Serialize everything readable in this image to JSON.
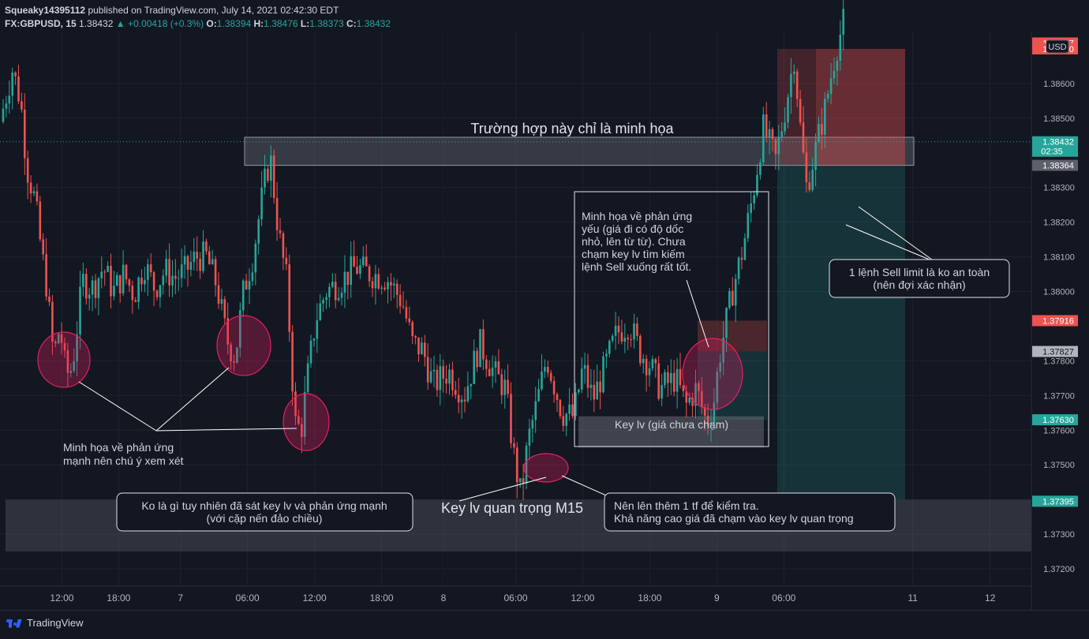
{
  "header": {
    "line1_user": "Squeaky14395112",
    "line1_rest": "published on TradingView.com, July 14, 2021 02:42:30 EDT",
    "symbol": "FX:GBPUSD, 15",
    "last": "1.38432",
    "change": "+0.00418 (+0.3%)",
    "o_label": "O:",
    "o": "1.38394",
    "h_label": "H:",
    "h": "1.38476",
    "l_label": "L:",
    "l": "1.38373",
    "c_label": "C:",
    "c": "1.38432"
  },
  "footer": {
    "brand": "TradingView"
  },
  "colors": {
    "background": "#131722",
    "up": "#26a69a",
    "down": "#ef5350",
    "annotation_circle": "#e91e63",
    "zone": "#787b86"
  },
  "chart_data": {
    "type": "candlestick",
    "currency": "USD",
    "ylim": [
      1.3715,
      1.3875
    ],
    "y_ticks": [
      "1.38600",
      "1.38500",
      "1.38300",
      "1.38200",
      "1.38100",
      "1.38000",
      "1.37800",
      "1.37700",
      "1.37600",
      "1.37500",
      "1.37300",
      "1.37200"
    ],
    "x_ticks": [
      {
        "label": "12:00",
        "t": 0.06
      },
      {
        "label": "18:00",
        "t": 0.115
      },
      {
        "label": "7",
        "t": 0.175
      },
      {
        "label": "06:00",
        "t": 0.24
      },
      {
        "label": "12:00",
        "t": 0.305
      },
      {
        "label": "18:00",
        "t": 0.37
      },
      {
        "label": "8",
        "t": 0.43
      },
      {
        "label": "06:00",
        "t": 0.5
      },
      {
        "label": "12:00",
        "t": 0.565
      },
      {
        "label": "18:00",
        "t": 0.63
      },
      {
        "label": "9",
        "t": 0.695
      },
      {
        "label": "06:00",
        "t": 0.76
      },
      {
        "label": "11",
        "t": 0.885
      },
      {
        "label": "12",
        "t": 0.96
      }
    ],
    "price_labels": [
      {
        "text": "1.38717",
        "price": 1.38717,
        "bg": "#ef5350"
      },
      {
        "text": "1.38700",
        "price": 1.387,
        "bg": "#ef5350"
      },
      {
        "text": "1.38432",
        "sub": "02:35",
        "price": 1.38432,
        "bg": "#26a69a"
      },
      {
        "text": "1.38364",
        "price": 1.38364,
        "bg": "#5d606b"
      },
      {
        "text": "1.37916",
        "price": 1.37916,
        "bg": "#ef5350"
      },
      {
        "text": "1.37827",
        "price": 1.37827,
        "bg": "#b2b5be",
        "fg": "#131722"
      },
      {
        "text": "1.37630",
        "price": 1.3763,
        "bg": "#26a69a"
      },
      {
        "text": "1.37395",
        "price": 1.37395,
        "bg": "#26a69a"
      }
    ],
    "path": [
      [
        0.0,
        1.3849
      ],
      [
        0.012,
        1.3864
      ],
      [
        0.02,
        1.3855
      ],
      [
        0.026,
        1.3836
      ],
      [
        0.034,
        1.3826
      ],
      [
        0.04,
        1.3812
      ],
      [
        0.045,
        1.3802
      ],
      [
        0.052,
        1.3781
      ],
      [
        0.058,
        1.379
      ],
      [
        0.064,
        1.3776
      ],
      [
        0.07,
        1.3778
      ],
      [
        0.08,
        1.3803
      ],
      [
        0.09,
        1.3801
      ],
      [
        0.1,
        1.3807
      ],
      [
        0.11,
        1.38
      ],
      [
        0.12,
        1.3805
      ],
      [
        0.13,
        1.3799
      ],
      [
        0.14,
        1.3808
      ],
      [
        0.15,
        1.3801
      ],
      [
        0.16,
        1.3806
      ],
      [
        0.17,
        1.3804
      ],
      [
        0.18,
        1.3806
      ],
      [
        0.19,
        1.381
      ],
      [
        0.2,
        1.381
      ],
      [
        0.21,
        1.3802
      ],
      [
        0.22,
        1.3786
      ],
      [
        0.228,
        1.3781
      ],
      [
        0.236,
        1.38
      ],
      [
        0.245,
        1.381
      ],
      [
        0.255,
        1.3829
      ],
      [
        0.262,
        1.3839
      ],
      [
        0.27,
        1.3817
      ],
      [
        0.278,
        1.3803
      ],
      [
        0.286,
        1.3762
      ],
      [
        0.292,
        1.376
      ],
      [
        0.298,
        1.3775
      ],
      [
        0.306,
        1.3792
      ],
      [
        0.316,
        1.38
      ],
      [
        0.33,
        1.3803
      ],
      [
        0.345,
        1.3807
      ],
      [
        0.36,
        1.3805
      ],
      [
        0.375,
        1.3804
      ],
      [
        0.39,
        1.3797
      ],
      [
        0.4,
        1.3785
      ],
      [
        0.41,
        1.3783
      ],
      [
        0.42,
        1.3773
      ],
      [
        0.435,
        1.3777
      ],
      [
        0.45,
        1.377
      ],
      [
        0.465,
        1.3785
      ],
      [
        0.48,
        1.3776
      ],
      [
        0.49,
        1.3772
      ],
      [
        0.498,
        1.3753
      ],
      [
        0.505,
        1.3741
      ],
      [
        0.512,
        1.3757
      ],
      [
        0.52,
        1.3767
      ],
      [
        0.53,
        1.3781
      ],
      [
        0.545,
        1.3765
      ],
      [
        0.556,
        1.3764
      ],
      [
        0.565,
        1.3778
      ],
      [
        0.575,
        1.3769
      ],
      [
        0.585,
        1.3777
      ],
      [
        0.598,
        1.3788
      ],
      [
        0.61,
        1.3791
      ],
      [
        0.62,
        1.3783
      ],
      [
        0.63,
        1.3779
      ],
      [
        0.64,
        1.3772
      ],
      [
        0.655,
        1.3775
      ],
      [
        0.665,
        1.3767
      ],
      [
        0.675,
        1.3772
      ],
      [
        0.685,
        1.3762
      ],
      [
        0.692,
        1.3768
      ],
      [
        0.698,
        1.3782
      ],
      [
        0.71,
        1.38
      ],
      [
        0.72,
        1.3812
      ],
      [
        0.73,
        1.3828
      ],
      [
        0.74,
        1.3847
      ],
      [
        0.752,
        1.3838
      ],
      [
        0.762,
        1.3854
      ],
      [
        0.77,
        1.3868
      ],
      [
        0.776,
        1.3847
      ],
      [
        0.782,
        1.383
      ],
      [
        0.79,
        1.384
      ],
      [
        0.8,
        1.3853
      ],
      [
        0.81,
        1.3869
      ],
      [
        0.818,
        1.3878
      ]
    ]
  },
  "annotations": {
    "title_note": "Trường hợp này chỉ là minh họa",
    "weak_reaction": "Minh họa về phản ứng yếu (giá đi có độ dốc nhỏ, lên từ từ). Chưa chạm key lv tìm kiếm lệnh Sell xuống rất tốt.",
    "key_untouched": "Key lv (giá chưa chạm)",
    "strong_reaction_line1": "Minh họa về phản ứng",
    "strong_reaction_line2": "mạnh nên chú ý xem xét",
    "key_main": "Key lv quan trọng M15",
    "left_box_line1": "Ko là gì tuy nhiên đã sát key lv và phản ứng mạnh",
    "left_box_line2": "(với cặp nến đảo chiều)",
    "right_box_line1": "Nên lên thêm 1 tf để kiểm tra.",
    "right_box_line2": "Khả năng cao giá đã chạm vào key lv quan trọng",
    "sell_note_line1": "1 lệnh Sell limit là ko an toàn",
    "sell_note_line2": "(nên đợi xác nhận)"
  }
}
